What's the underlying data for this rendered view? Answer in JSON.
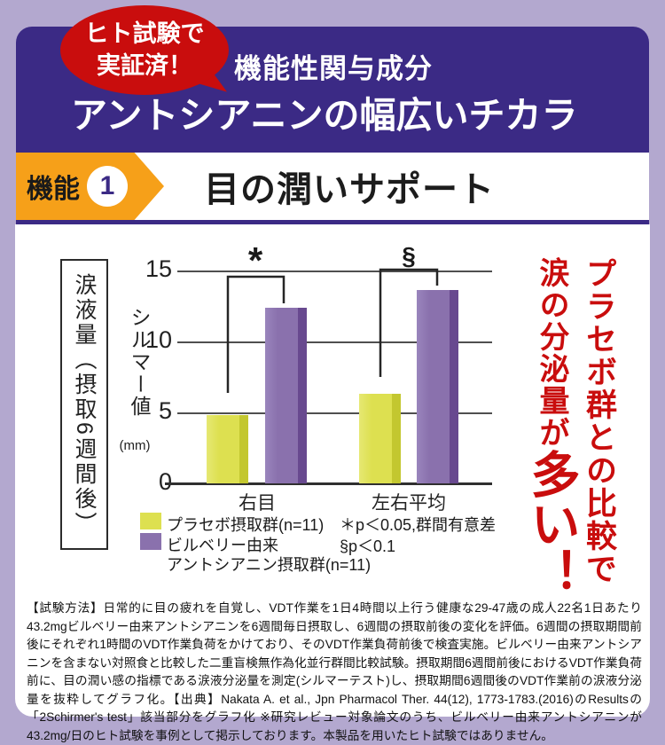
{
  "badge": {
    "line1": "ヒト試験で",
    "line2": "実証済！"
  },
  "header": {
    "subtitle": "機能性関与成分",
    "title": "アントシアニンの幅広いチカラ"
  },
  "banner": {
    "tag_label": "機能",
    "tag_number": "1",
    "title": "目の潤いサポート"
  },
  "chart_data": {
    "type": "bar",
    "axis_title": "涙液量（摂取6週間後）",
    "ylabel": "シルマー値",
    "y_unit": "(mm)",
    "ylim": [
      0,
      15
    ],
    "yticks": [
      15,
      10,
      5,
      0
    ],
    "grid": true,
    "categories": [
      "右目",
      "左右平均"
    ],
    "series": [
      {
        "name": "プラセボ摂取群(n=11)",
        "color": "#dde050",
        "values": [
          4.8,
          6.3
        ]
      },
      {
        "name": "ビルベリー由来アントシアニン摂取群(n=11)",
        "color": "#8a71ad",
        "values": [
          12.4,
          13.6
        ]
      }
    ],
    "significance": [
      {
        "category": "右目",
        "symbol": "*",
        "meaning": "p＜0.05,群間有意差"
      },
      {
        "category": "左右平均",
        "symbol": "§",
        "meaning": "p＜0.1"
      }
    ],
    "notes": [
      "＊p＜0.05,群間有意差",
      "§p＜0.1"
    ],
    "legend": {
      "series1": "プラセボ摂取群(n=11)",
      "series2_line1": "ビルベリー由来",
      "series2_line2": "アントシアニン摂取群(n=11)"
    },
    "legend_position": "bottom"
  },
  "callout": {
    "column1": "プラセボ群との比較で",
    "column2_normal": "涙の分泌量が",
    "column2_large": "多い！"
  },
  "footnote": "【試験方法】日常的に目の疲れを自覚し、VDT作業を1日4時間以上行う健康な29-47歳の成人22名1日あたり43.2mgビルベリー由来アントシアニンを6週間毎日摂取し、6週間の摂取前後の変化を評価。6週間の摂取期間前後にそれぞれ1時間のVDT作業負荷をかけており、そのVDT作業負荷前後で検査実施。ビルベリー由来アントシアニンを含まない対照食と比較した二重盲検無作為化並行群間比較試験。摂取期間6週間前後におけるVDT作業負荷前に、目の潤い感の指標である涙液分泌量を測定(シルマーテスト)し、摂取期間6週間後のVDT作業前の涙液分泌量を抜粋してグラフ化。【出典】Nakata A. et al., Jpn Pharmacol Ther. 44(12), 1773-1783.(2016)のResultsの「2Schirmer's test」該当部分をグラフ化 ※研究レビュー対象論文のうち、ビルベリー由来アントシアニンが43.2mg/日のヒト試験を事例として掲示しております。本製品を用いたヒト試験ではありません。",
  "colors": {
    "page_bg": "#b3a8cf",
    "panel_purple": "#3b2a85",
    "accent_red": "#c90d0d",
    "banner_orange": "#f6a019",
    "bar_placebo": "#dde050",
    "bar_placebo_edge": "#c3c72f",
    "bar_anthocyanin": "#8a71ad",
    "bar_anthocyanin_edge": "#68498f"
  }
}
